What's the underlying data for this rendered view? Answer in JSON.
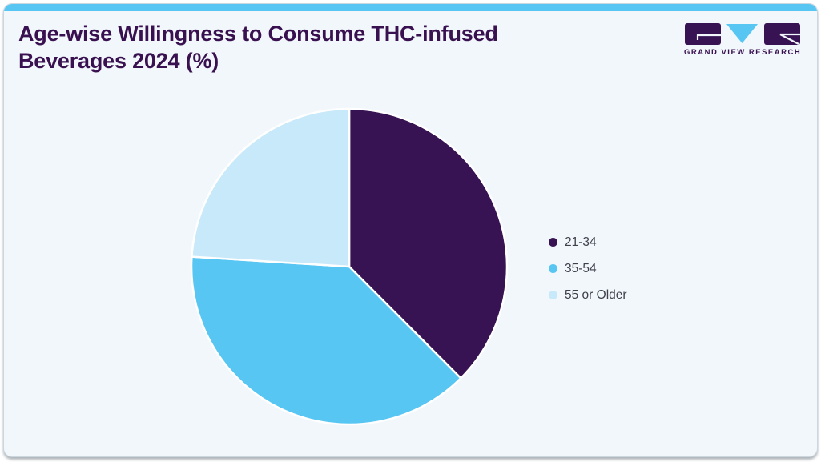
{
  "header": {
    "title": "Age-wise Willingness to Consume THC-infused Beverages 2024 (%)",
    "logo_text": "GRAND VIEW RESEARCH"
  },
  "theme": {
    "accent_blue": "#58c6f2",
    "brand_purple": "#3a1150",
    "card_background": "#f1f7fb",
    "card_border": "#ccd6de",
    "legend_text": "#40404c",
    "slice_separator": "#ffffff"
  },
  "chart_data": {
    "type": "pie",
    "title": "Age-wise Willingness to Consume THC-infused Beverages 2024 (%)",
    "unit": "%",
    "start_angle_deg": 0,
    "direction": "clockwise",
    "legend_position": "right",
    "slices": [
      {
        "label": "21-34",
        "value": 37.5,
        "color": "#371353"
      },
      {
        "label": "35-54",
        "value": 38.5,
        "color": "#58c6f2"
      },
      {
        "label": "55 or Older",
        "value": 24.0,
        "color": "#c8e9fa"
      }
    ]
  }
}
